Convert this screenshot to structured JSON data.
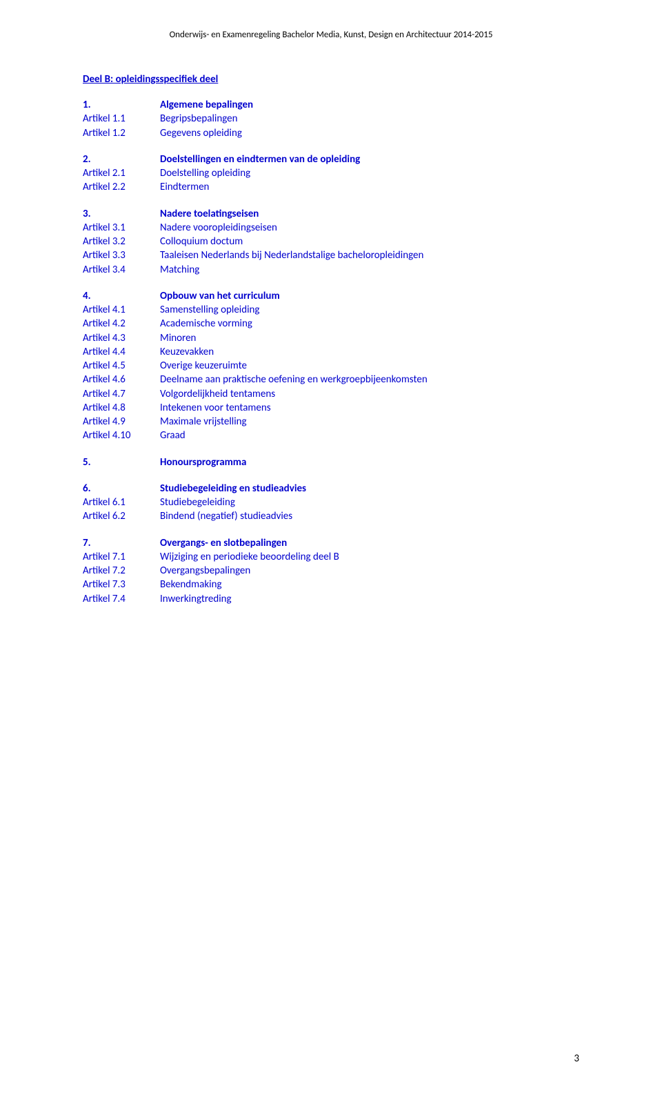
{
  "colors": {
    "link": "#0000cd",
    "text": "#000000",
    "bg": "#ffffff"
  },
  "typography": {
    "body_fontsize": 15,
    "header_fontsize": 13,
    "font_family": "Calibri, Arial, sans-serif"
  },
  "header": "Onderwijs- en Examenregeling Bachelor Media, Kunst, Design en Architectuur 2014-2015",
  "section_title": "Deel B: opleidingsspecifiek deel",
  "blocks": [
    {
      "rows": [
        {
          "key": "1.",
          "val": "Algemene bepalingen",
          "bold": true
        },
        {
          "key": "Artikel 1.1",
          "val": "Begripsbepalingen"
        },
        {
          "key": "Artikel 1.2",
          "val": "Gegevens opleiding"
        }
      ]
    },
    {
      "rows": [
        {
          "key": "2.",
          "val": "Doelstellingen en eindtermen van de opleiding",
          "bold": true
        },
        {
          "key": "Artikel 2.1",
          "val": "Doelstelling opleiding"
        },
        {
          "key": "Artikel 2.2",
          "val": "Eindtermen"
        }
      ]
    },
    {
      "rows": [
        {
          "key": "3.",
          "val": "Nadere toelatingseisen",
          "bold": true
        },
        {
          "key": "Artikel 3.1",
          "val": "Nadere vooropleidingseisen"
        },
        {
          "key": "Artikel 3.2",
          "val": "Colloquium doctum"
        },
        {
          "key": "Artikel 3.3",
          "val": "Taaleisen Nederlands bij Nederlandstalige bacheloropleidingen"
        },
        {
          "key": "Artikel 3.4",
          "val": "Matching"
        }
      ]
    },
    {
      "rows": [
        {
          "key": "4.",
          "val": "Opbouw van het curriculum",
          "bold": true
        },
        {
          "key": "Artikel 4.1",
          "val": "Samenstelling opleiding"
        },
        {
          "key": "Artikel 4.2",
          "val": "Academische vorming"
        },
        {
          "key": "Artikel 4.3",
          "val": "Minoren"
        },
        {
          "key": "Artikel 4.4",
          "val": "Keuzevakken"
        },
        {
          "key": "Artikel 4.5",
          "val": "Overige keuzeruimte"
        },
        {
          "key": "Artikel 4.6",
          "val": "Deelname aan praktische oefening en werkgroepbijeenkomsten"
        },
        {
          "key": "Artikel 4.7",
          "val": "Volgordelijkheid tentamens"
        },
        {
          "key": "Artikel 4.8",
          "val": "Intekenen voor tentamens"
        },
        {
          "key": "Artikel 4.9",
          "val": "Maximale vrijstelling"
        },
        {
          "key": "Artikel 4.10",
          "val": "Graad"
        }
      ]
    },
    {
      "rows": [
        {
          "key": "5.",
          "val": "Honoursprogramma",
          "bold": true
        }
      ]
    },
    {
      "rows": [
        {
          "key": "6.",
          "val": "Studiebegeleiding en studieadvies",
          "bold": true
        },
        {
          "key": "Artikel 6.1",
          "val": "Studiebegeleiding"
        },
        {
          "key": "Artikel 6.2",
          "val": "Bindend (negatief) studieadvies"
        }
      ]
    },
    {
      "rows": [
        {
          "key": "7.",
          "val": "Overgangs- en slotbepalingen",
          "bold": true
        },
        {
          "key": "Artikel 7.1",
          "val": "Wijziging en periodieke beoordeling deel B"
        },
        {
          "key": "Artikel 7.2",
          "val": "Overgangsbepalingen"
        },
        {
          "key": "Artikel 7.3",
          "val": "Bekendmaking"
        },
        {
          "key": "Artikel 7.4",
          "val": "Inwerkingtreding"
        }
      ]
    }
  ],
  "page_number": "3"
}
